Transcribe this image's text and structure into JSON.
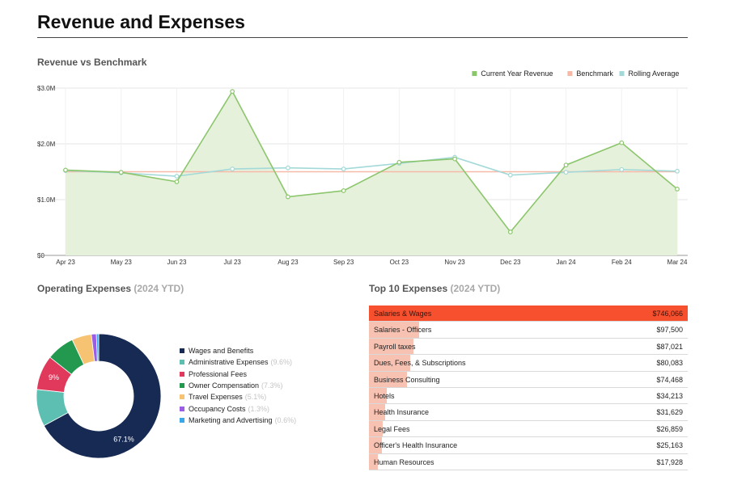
{
  "page_title": "Revenue and Expenses",
  "colors": {
    "revenue": "#8cc66c",
    "revenue_fill": "#e6f1dc",
    "benchmark": "#f6b9a7",
    "rolling": "#a3d9d8",
    "grid": "#e6e6e6",
    "navy": "#162a54",
    "top_bar": "#f6502e",
    "bar": "#f8c2b2"
  },
  "revenue_chart": {
    "title": "Revenue vs Benchmark"
  },
  "operating": {
    "title": "Operating Expenses",
    "subtitle": "(2024 YTD)"
  },
  "top10": {
    "title": "Top 10 Expenses",
    "subtitle": "(2024 YTD)",
    "rows": [
      {
        "name": "Salaries & Wages",
        "amount": "$746,066"
      },
      {
        "name": "Salaries - Officers",
        "amount": "$97,500"
      },
      {
        "name": "Payroll taxes",
        "amount": "$87,021"
      },
      {
        "name": "Dues, Fees, & Subscriptions",
        "amount": "$80,083"
      },
      {
        "name": "Business Consulting",
        "amount": "$74,468"
      },
      {
        "name": "Hotels",
        "amount": "$34,213"
      },
      {
        "name": "Health Insurance",
        "amount": "$31,629"
      },
      {
        "name": "Legal Fees",
        "amount": "$26,859"
      },
      {
        "name": "Officer's Health Insurance",
        "amount": "$25,163"
      },
      {
        "name": "Human Resources",
        "amount": "$17,928"
      }
    ]
  },
  "chart_data": [
    {
      "type": "area",
      "title": "Revenue vs Benchmark",
      "categories": [
        "Apr 23",
        "May 23",
        "Jun 23",
        "Jul 23",
        "Aug 23",
        "Sep 23",
        "Oct 23",
        "Nov 23",
        "Dec 23",
        "Jan 24",
        "Feb 24",
        "Mar 24"
      ],
      "ylim": [
        0,
        3000000
      ],
      "yticks": [
        0,
        1000000,
        2000000,
        3000000
      ],
      "ytick_labels": [
        "$0",
        "$1.0M",
        "$2.0M",
        "$3.0M"
      ],
      "series": [
        {
          "name": "Current Year Revenue",
          "color": "#8cc66c",
          "filled": true,
          "values": [
            1530000,
            1490000,
            1320000,
            2940000,
            1050000,
            1160000,
            1670000,
            1730000,
            420000,
            1620000,
            2020000,
            1190000
          ]
        },
        {
          "name": "Benchmark",
          "color": "#f6b9a7",
          "filled": false,
          "values": [
            1500000,
            1500000,
            1500000,
            1500000,
            1500000,
            1500000,
            1500000,
            1500000,
            1500000,
            1500000,
            1500000,
            1500000
          ]
        },
        {
          "name": "Rolling Average",
          "color": "#a3d9d8",
          "filled": false,
          "values": [
            1520000,
            1480000,
            1420000,
            1550000,
            1570000,
            1550000,
            1650000,
            1760000,
            1440000,
            1490000,
            1540000,
            1510000
          ]
        }
      ],
      "legend": "top-right",
      "grid": true
    },
    {
      "type": "pie",
      "title": "Operating Expenses (2024 YTD)",
      "donut": true,
      "slices": [
        {
          "label": "Wages and Benefits",
          "value": 67.1,
          "pct_text": "",
          "inner_label": "67.1%",
          "color": "#162a54"
        },
        {
          "label": "Administrative Expenses",
          "value": 9.6,
          "pct_text": "(9.6%)",
          "inner_label": "",
          "color": "#5cbfb2"
        },
        {
          "label": "Professional Fees",
          "value": 9.0,
          "pct_text": "",
          "inner_label": "9%",
          "color": "#e0395c"
        },
        {
          "label": "Owner Compensation",
          "value": 7.3,
          "pct_text": "(7.3%)",
          "inner_label": "",
          "color": "#22994f"
        },
        {
          "label": "Travel Expenses",
          "value": 5.1,
          "pct_text": "(5.1%)",
          "inner_label": "",
          "color": "#f6c373"
        },
        {
          "label": "Occupancy Costs",
          "value": 1.3,
          "pct_text": "(1.3%)",
          "inner_label": "",
          "color": "#9b5de5"
        },
        {
          "label": "Marketing and Advertising",
          "value": 0.6,
          "pct_text": "(0.6%)",
          "inner_label": "",
          "color": "#3aa7e8"
        }
      ]
    },
    {
      "type": "bar",
      "title": "Top 10 Expenses (2024 YTD)",
      "categories": [
        "Salaries & Wages",
        "Salaries - Officers",
        "Payroll taxes",
        "Dues, Fees, & Subscriptions",
        "Business Consulting",
        "Hotels",
        "Health Insurance",
        "Legal Fees",
        "Officer's Health Insurance",
        "Human Resources"
      ],
      "values": [
        746066,
        97500,
        87021,
        80083,
        74468,
        34213,
        31629,
        26859,
        25163,
        17928
      ]
    }
  ]
}
